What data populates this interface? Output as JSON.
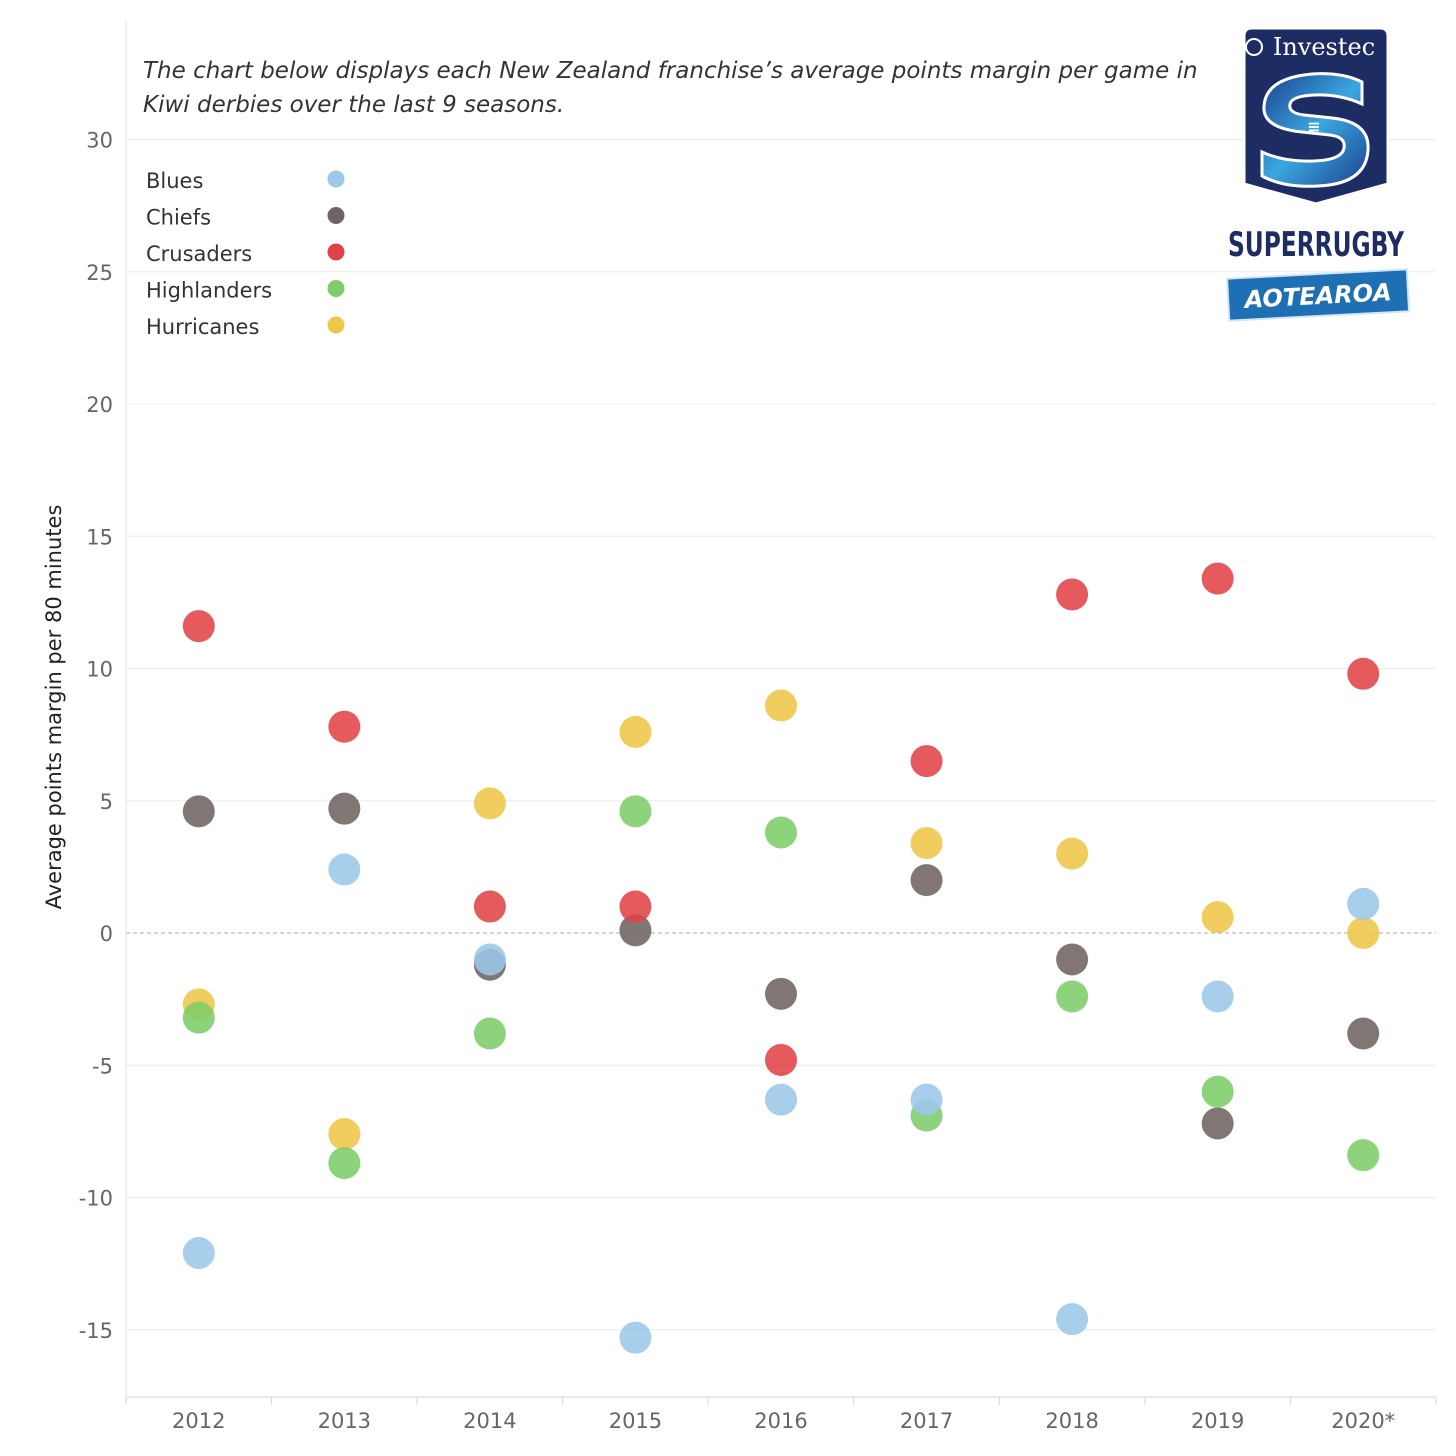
{
  "subtitle": "The chart below displays each New Zealand franchise’s average points margin per game in Kiwi derbies over the last 9 seasons.",
  "logo": {
    "sponsor_text": "Investec",
    "brand_text": "SUPERRUGBY",
    "tagline_text": "AOTEAROA"
  },
  "chart_data": {
    "type": "scatter",
    "ylabel": "Average points margin per 80 minutes",
    "xlabel": "",
    "categories": [
      "2012",
      "2013",
      "2014",
      "2015",
      "2016",
      "2017",
      "2018",
      "2019",
      "2020*"
    ],
    "yticks": [
      30,
      25,
      20,
      15,
      10,
      5,
      0,
      -5,
      -10,
      -15
    ],
    "ylim": [
      -17.5,
      34
    ],
    "grid": true,
    "zero_line": "dashed",
    "legend_position": "top-left",
    "series": [
      {
        "name": "Hurricanes",
        "color": "#EFC649",
        "values": [
          -2.7,
          -7.6,
          4.9,
          7.6,
          8.6,
          3.4,
          3.0,
          0.6,
          0.0
        ]
      },
      {
        "name": "Highlanders",
        "color": "#7DCD6A",
        "values": [
          -3.2,
          -8.7,
          -3.8,
          4.6,
          3.8,
          -6.9,
          -2.4,
          -6.0,
          -8.4
        ]
      },
      {
        "name": "Chiefs",
        "color": "#6E6461",
        "values": [
          4.6,
          4.7,
          -1.2,
          0.1,
          -2.3,
          2.0,
          -1.0,
          -7.2,
          -3.8
        ]
      },
      {
        "name": "Crusaders",
        "color": "#E04347",
        "values": [
          11.6,
          7.8,
          1.0,
          1.0,
          -4.8,
          6.5,
          12.8,
          13.4,
          9.8
        ]
      },
      {
        "name": "Blues",
        "color": "#9BC7E8",
        "values": [
          -12.1,
          2.4,
          -1.0,
          -15.3,
          -6.3,
          -6.3,
          -14.6,
          -2.4,
          1.1
        ]
      }
    ],
    "legend": [
      {
        "name": "Blues",
        "color": "#9BC7E8"
      },
      {
        "name": "Chiefs",
        "color": "#6E6461"
      },
      {
        "name": "Crusaders",
        "color": "#E04347"
      },
      {
        "name": "Highlanders",
        "color": "#7DCD6A"
      },
      {
        "name": "Hurricanes",
        "color": "#EFC649"
      }
    ]
  }
}
